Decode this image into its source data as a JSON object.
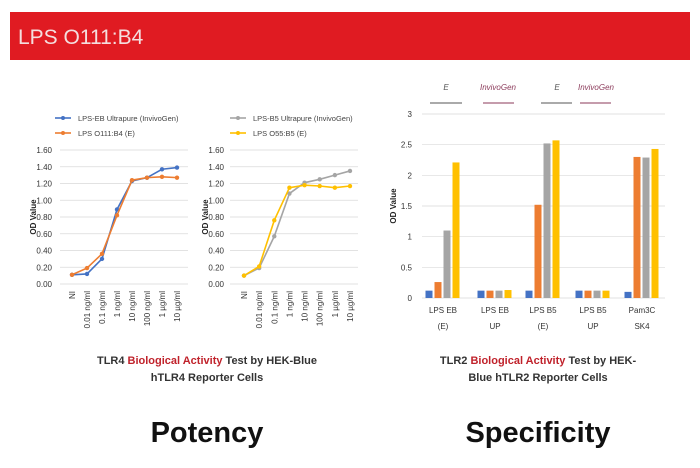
{
  "header": {
    "title": "LPS O111:B4",
    "color": "#e01b22"
  },
  "potency_caption": {
    "line1_pre": "TLR4 ",
    "line1_red": "Biological Activity",
    "line1_post": " Test by HEK-Blue",
    "line2": "hTLR4 Reporter Cells"
  },
  "specificity_caption": {
    "line1_pre": "TLR2 ",
    "line1_red": "Biological Activity",
    "line1_post": " Test by HEK-",
    "line2": "Blue hTLR2 Reporter Cells"
  },
  "potency_label": "Potency",
  "specificity_label": "Specificity",
  "chart_data": [
    {
      "type": "line",
      "ylabel": "OD Value",
      "ylim": [
        0,
        1.6
      ],
      "yticks": [
        "0.00",
        "0.20",
        "0.40",
        "0.60",
        "0.80",
        "1.00",
        "1.20",
        "1.40",
        "1.60"
      ],
      "grid": true,
      "legend": "top",
      "categories": [
        "NI",
        "0.01 ng/ml",
        "0.1 ng/ml",
        "1 ng/ml",
        "10 ng/ml",
        "100 ng/ml",
        "1 µg/ml",
        "10 µg/ml"
      ],
      "series": [
        {
          "name": "LPS-EB Ultrapure (InvivoGen)",
          "color": "#4472c4",
          "values": [
            0.11,
            0.12,
            0.3,
            0.89,
            1.23,
            1.27,
            1.37,
            1.39
          ]
        },
        {
          "name": "LPS O111:B4 (E)",
          "color": "#ed7d31",
          "values": [
            0.11,
            0.19,
            0.36,
            0.82,
            1.24,
            1.27,
            1.28,
            1.27
          ]
        }
      ]
    },
    {
      "type": "line",
      "ylabel": "OD Value",
      "ylim": [
        0,
        1.6
      ],
      "yticks": [
        "0.00",
        "0.20",
        "0.40",
        "0.60",
        "0.80",
        "1.00",
        "1.20",
        "1.40",
        "1.60"
      ],
      "grid": true,
      "legend": "top",
      "categories": [
        "NI",
        "0.01 ng/ml",
        "0.1 ng/ml",
        "1 ng/ml",
        "10 ng/ml",
        "100 ng/ml",
        "1 µg/ml",
        "10 µg/ml"
      ],
      "series": [
        {
          "name": "LPS-B5 Ultrapure (InvivoGen)",
          "color": "#a5a5a5",
          "values": [
            0.1,
            0.19,
            0.57,
            1.08,
            1.21,
            1.25,
            1.3,
            1.35
          ]
        },
        {
          "name": "LPS O55:B5 (E)",
          "color": "#ffc000",
          "values": [
            0.1,
            0.21,
            0.76,
            1.15,
            1.18,
            1.17,
            1.15,
            1.17
          ]
        }
      ]
    },
    {
      "type": "bar",
      "ylabel": "OD Value",
      "ylim": [
        0,
        3
      ],
      "yticks": [
        "0",
        "0.5",
        "1",
        "1.5",
        "2",
        "2.5",
        "3"
      ],
      "grid": true,
      "header_labels": [
        {
          "text": "E",
          "color": "#555555"
        },
        {
          "text": "InvivoGen",
          "color": "#8b3a5a"
        },
        {
          "text": "E",
          "color": "#555555"
        },
        {
          "text": "InvivoGen",
          "color": "#8b3a5a"
        }
      ],
      "categories": [
        [
          "LPS EB",
          "(E)"
        ],
        [
          "LPS EB",
          "UP"
        ],
        [
          "LPS B5",
          "(E)"
        ],
        [
          "LPS B5",
          "UP"
        ],
        [
          "Pam3C",
          "SK4"
        ]
      ],
      "series": [
        {
          "color": "#4472c4",
          "values": [
            0.12,
            0.12,
            0.12,
            0.12,
            0.1
          ]
        },
        {
          "color": "#ed7d31",
          "values": [
            0.26,
            0.12,
            1.52,
            0.12,
            2.3
          ]
        },
        {
          "color": "#a5a5a5",
          "values": [
            1.1,
            0.12,
            2.52,
            0.12,
            2.29
          ]
        },
        {
          "color": "#ffc000",
          "values": [
            2.21,
            0.13,
            2.57,
            0.12,
            2.43
          ]
        }
      ]
    }
  ]
}
